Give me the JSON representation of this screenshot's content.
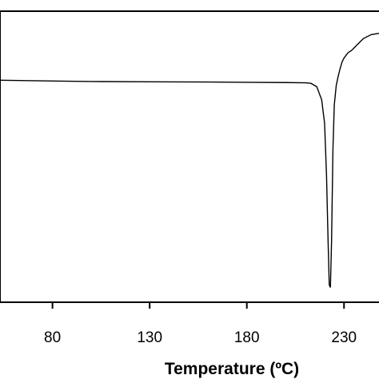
{
  "chart_data": {
    "type": "line",
    "title": "",
    "xlabel": "Temperature (ºC)",
    "ylabel": "",
    "xlim": [
      53,
      248
    ],
    "ylim": [
      0,
      1
    ],
    "x_ticks": [
      80,
      130,
      180,
      230
    ],
    "x_tick_labels": [
      "80",
      "130",
      "180",
      "230"
    ],
    "grid": false,
    "series": [
      {
        "color": "#000000",
        "x": [
          53,
          80,
          100,
          130,
          160,
          180,
          200,
          210,
          213,
          216,
          218.5,
          220,
          221,
          221.8,
          222.4,
          223,
          223.6,
          224.3,
          225,
          226,
          227,
          228,
          229,
          230,
          231,
          232,
          234,
          236,
          238,
          240,
          244,
          248
        ],
        "y": [
          0.815,
          0.812,
          0.81,
          0.809,
          0.808,
          0.807,
          0.806,
          0.805,
          0.803,
          0.79,
          0.74,
          0.65,
          0.45,
          0.2,
          0.03,
          0.02,
          0.2,
          0.55,
          0.72,
          0.795,
          0.83,
          0.86,
          0.885,
          0.9,
          0.91,
          0.92,
          0.93,
          0.945,
          0.96,
          0.975,
          0.99,
          0.995
        ]
      }
    ]
  }
}
